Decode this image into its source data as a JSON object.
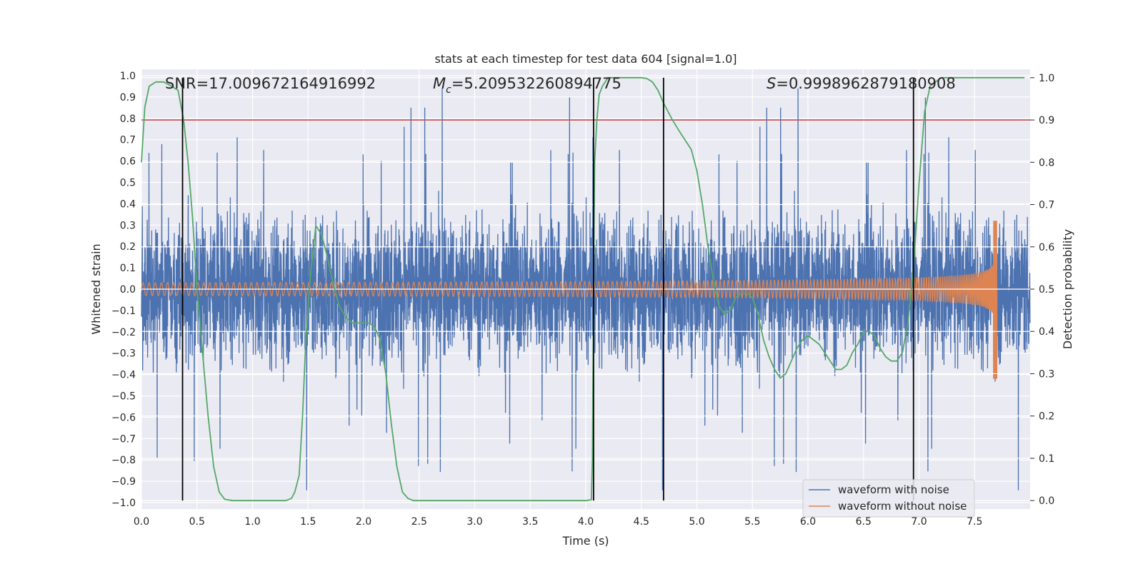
{
  "chart_data": {
    "type": "line",
    "title": "stats at each timestep for test data 604 [signal=1.0]",
    "xlabel": "Time (s)",
    "ylabel_left": "Whitened strain",
    "ylabel_right": "Detection probability",
    "xlim": [
      0.0,
      8.0
    ],
    "ylim_left": [
      -1.03,
      1.03
    ],
    "ylim_right": [
      -0.02,
      1.02
    ],
    "x_ticks": [
      0.0,
      0.5,
      1.0,
      1.5,
      2.0,
      2.5,
      3.0,
      3.5,
      4.0,
      4.5,
      5.0,
      5.5,
      6.0,
      6.5,
      7.0,
      7.5
    ],
    "x_tick_labels": [
      "0.0",
      "0.5",
      "1.0",
      "1.5",
      "2.0",
      "2.5",
      "3.0",
      "3.5",
      "4.0",
      "4.5",
      "5.0",
      "5.5",
      "6.0",
      "6.5",
      "7.0",
      "7.5"
    ],
    "y_left_ticks": [
      1.0,
      0.9,
      0.8,
      0.7,
      0.6,
      0.5,
      0.4,
      0.3,
      0.2,
      0.1,
      0.0,
      -0.1,
      -0.2,
      -0.3,
      -0.4,
      -0.5,
      -0.6,
      -0.7,
      -0.8,
      -0.9,
      -1.0
    ],
    "y_left_tick_labels": [
      "1.0",
      "0.9",
      "0.8",
      "0.7",
      "0.6",
      "0.5",
      "0.4",
      "0.3",
      "0.2",
      "0.1",
      "0.0",
      "−0.1",
      "−0.2",
      "−0.3",
      "−0.4",
      "−0.5",
      "−0.6",
      "−0.7",
      "−0.8",
      "−0.9",
      "−1.0"
    ],
    "y_right_ticks": [
      1.0,
      0.9,
      0.8,
      0.7,
      0.6,
      0.5,
      0.4,
      0.3,
      0.2,
      0.1,
      0.0
    ],
    "y_right_tick_labels": [
      "1.0",
      "0.9",
      "0.8",
      "0.7",
      "0.6",
      "0.5",
      "0.4",
      "0.3",
      "0.2",
      "0.1",
      "0.0"
    ],
    "annotations": {
      "snr_label": "SNR=17.009672164916992",
      "mc_symbol": "M",
      "mc_subscript": "c",
      "mc_value": "=5.209532260894775",
      "s_symbol": "S",
      "s_value": "=0.9998962879180908"
    },
    "series": [
      {
        "name": "waveform with noise",
        "color": "#4c72b0",
        "axis": "left",
        "noise_amplitude": 0.3,
        "peak_amplitude": 0.97
      },
      {
        "name": "waveform without noise",
        "color": "#dd8452",
        "axis": "left",
        "chirp_start_amplitude": 0.03,
        "chirp_peak_amplitude": 0.32,
        "chirp_min": -0.42,
        "merger_time": 7.7
      },
      {
        "name": "detection probability",
        "color": "#55a868",
        "axis": "right",
        "x": [
          0.0,
          0.03,
          0.07,
          0.13,
          0.2,
          0.27,
          0.33,
          0.38,
          0.42,
          0.46,
          0.5,
          0.55,
          0.6,
          0.65,
          0.7,
          0.75,
          0.82,
          0.9,
          1.0,
          1.1,
          1.2,
          1.3,
          1.35,
          1.38,
          1.42,
          1.45,
          1.48,
          1.52,
          1.57,
          1.62,
          1.67,
          1.72,
          1.78,
          1.85,
          1.9,
          2.0,
          2.05,
          2.1,
          2.15,
          2.2,
          2.25,
          2.3,
          2.35,
          2.4,
          2.45,
          2.5,
          2.6,
          2.8,
          3.0,
          3.2,
          3.5,
          3.8,
          4.0,
          4.05,
          4.06,
          4.07,
          4.08,
          4.1,
          4.12,
          4.15,
          4.2,
          4.3,
          4.4,
          4.5,
          4.55,
          4.6,
          4.65,
          4.7,
          4.78,
          4.85,
          4.9,
          4.95,
          5.0,
          5.05,
          5.1,
          5.15,
          5.2,
          5.25,
          5.3,
          5.35,
          5.4,
          5.45,
          5.5,
          5.55,
          5.6,
          5.65,
          5.7,
          5.75,
          5.8,
          5.85,
          5.9,
          5.95,
          6.0,
          6.05,
          6.1,
          6.15,
          6.2,
          6.25,
          6.3,
          6.35,
          6.4,
          6.45,
          6.5,
          6.55,
          6.6,
          6.65,
          6.7,
          6.75,
          6.8,
          6.85,
          6.9,
          6.95,
          7.0,
          7.05,
          7.1,
          7.2,
          7.5,
          7.7,
          7.8,
          7.95
        ],
        "values": [
          0.8,
          0.93,
          0.98,
          0.99,
          0.99,
          0.98,
          0.97,
          0.9,
          0.8,
          0.67,
          0.5,
          0.35,
          0.2,
          0.08,
          0.02,
          0.003,
          0.0,
          0.0,
          0.0,
          0.0,
          0.0,
          0.0,
          0.005,
          0.02,
          0.06,
          0.2,
          0.38,
          0.53,
          0.65,
          0.63,
          0.58,
          0.52,
          0.46,
          0.43,
          0.42,
          0.42,
          0.42,
          0.41,
          0.38,
          0.3,
          0.18,
          0.08,
          0.02,
          0.005,
          0.0,
          0.0,
          0.0,
          0.0,
          0.0,
          0.0,
          0.0,
          0.0,
          0.0,
          0.002,
          0.1,
          0.5,
          0.8,
          0.9,
          0.96,
          0.98,
          1.0,
          1.0,
          1.0,
          1.0,
          0.998,
          0.99,
          0.97,
          0.94,
          0.9,
          0.87,
          0.85,
          0.83,
          0.78,
          0.7,
          0.6,
          0.52,
          0.46,
          0.44,
          0.45,
          0.48,
          0.49,
          0.49,
          0.48,
          0.44,
          0.38,
          0.34,
          0.31,
          0.29,
          0.3,
          0.33,
          0.36,
          0.38,
          0.39,
          0.38,
          0.37,
          0.35,
          0.33,
          0.31,
          0.31,
          0.32,
          0.35,
          0.37,
          0.4,
          0.4,
          0.39,
          0.36,
          0.34,
          0.33,
          0.33,
          0.35,
          0.42,
          0.55,
          0.75,
          0.92,
          0.98,
          1.0,
          1.0,
          1.0,
          1.0,
          1.0
        ]
      }
    ],
    "threshold": {
      "value": 0.9,
      "axis": "right",
      "color": "#c44e52"
    },
    "event_markers": {
      "times": [
        0.37,
        4.07,
        4.7,
        6.95
      ],
      "color": "#000000",
      "range_right": [
        0.0,
        1.0
      ]
    },
    "legend": {
      "placement": "lower-right",
      "entries": [
        "waveform with noise",
        "waveform without noise"
      ]
    },
    "grid": true
  }
}
